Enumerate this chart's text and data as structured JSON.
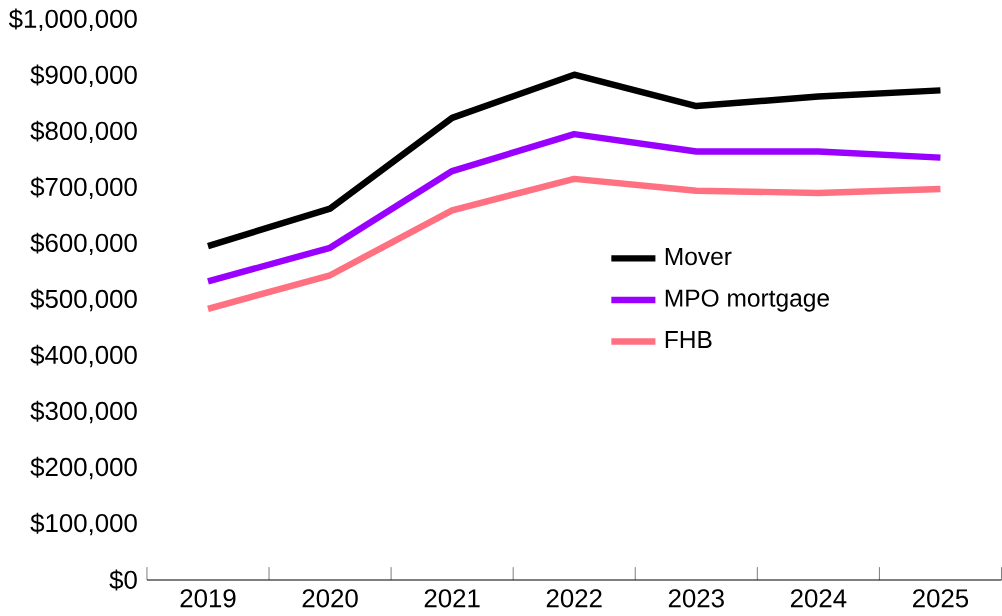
{
  "chart_data": {
    "type": "line",
    "categories": [
      "2019",
      "2020",
      "2021",
      "2022",
      "2023",
      "2024",
      "2025"
    ],
    "series": [
      {
        "name": "Mover",
        "color": "#000000",
        "values": [
          596000,
          663000,
          825000,
          902000,
          846000,
          863000,
          874000
        ]
      },
      {
        "name": "MPO mortgage",
        "color": "#9900ff",
        "values": [
          533000,
          593000,
          730000,
          796000,
          765000,
          765000,
          754000
        ]
      },
      {
        "name": "FHB",
        "color": "#ff7080",
        "values": [
          484000,
          544000,
          660000,
          716000,
          695000,
          691000,
          698000
        ]
      }
    ],
    "ylim": [
      0,
      1000000
    ],
    "yticks": [
      {
        "value": 0,
        "label": "$0"
      },
      {
        "value": 100000,
        "label": "$100,000"
      },
      {
        "value": 200000,
        "label": "$200,000"
      },
      {
        "value": 300000,
        "label": "$300,000"
      },
      {
        "value": 400000,
        "label": "$400,000"
      },
      {
        "value": 500000,
        "label": "$500,000"
      },
      {
        "value": 600000,
        "label": "$600,000"
      },
      {
        "value": 700000,
        "label": "$700,000"
      },
      {
        "value": 800000,
        "label": "$800,000"
      },
      {
        "value": 900000,
        "label": "$900,000"
      },
      {
        "value": 1000000,
        "label": "$1,000,000"
      }
    ],
    "grid": false,
    "legend": "right",
    "marker": "none",
    "line_style": "solid"
  }
}
